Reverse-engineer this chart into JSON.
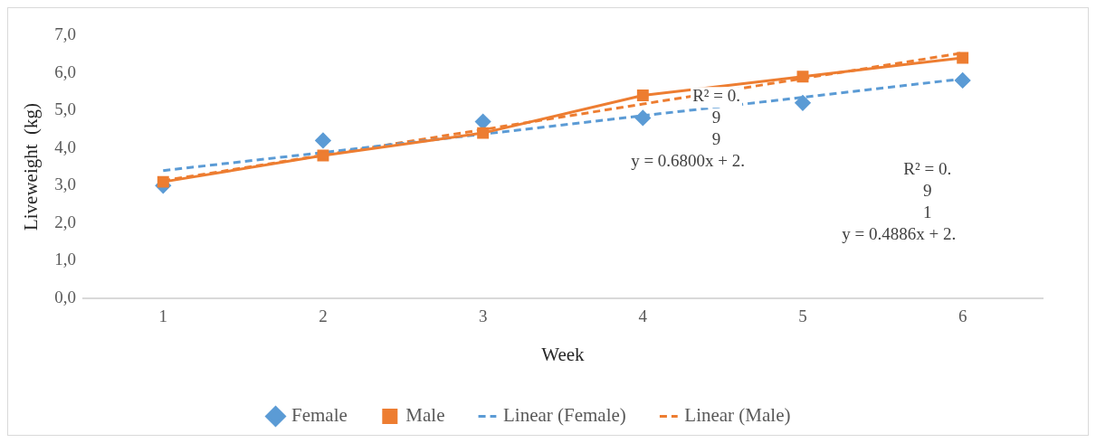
{
  "chart_data": {
    "type": "line",
    "xlabel": "Week",
    "ylabel": "Liveweight  (kg)",
    "xlim": [
      0.5,
      6.5
    ],
    "xticks": [
      1,
      2,
      3,
      4,
      5,
      6
    ],
    "ylim": [
      0,
      7
    ],
    "yticks": [
      {
        "value": 0,
        "label": "0,0"
      },
      {
        "value": 1,
        "label": "1,0"
      },
      {
        "value": 2,
        "label": "2,0"
      },
      {
        "value": 3,
        "label": "3,0"
      },
      {
        "value": 4,
        "label": "4,0"
      },
      {
        "value": 5,
        "label": "5,0"
      },
      {
        "value": 6,
        "label": "6,0"
      },
      {
        "value": 7,
        "label": "7,0"
      }
    ],
    "grid": false,
    "legend": "bottom",
    "series": [
      {
        "name": "Female",
        "type": "scatter",
        "marker": "diamond",
        "color": "#5b9bd5",
        "x": [
          1,
          2,
          3,
          4,
          5,
          6
        ],
        "values": [
          3.0,
          4.2,
          4.7,
          4.8,
          5.2,
          5.8
        ]
      },
      {
        "name": "Male",
        "type": "line",
        "marker": "square",
        "line_style": "solid",
        "color": "#ed7d31",
        "x": [
          1,
          2,
          3,
          4,
          5,
          6
        ],
        "values": [
          3.1,
          3.8,
          4.4,
          5.4,
          5.9,
          6.4
        ]
      },
      {
        "name": "Linear (Female)",
        "type": "line",
        "marker": "none",
        "line_style": "dashed",
        "color": "#5b9bd5",
        "x": [
          1,
          2,
          3,
          4,
          5,
          6
        ],
        "values": [
          3.4,
          3.88,
          4.37,
          4.86,
          5.35,
          5.84
        ]
      },
      {
        "name": "Linear (Male)",
        "type": "line",
        "marker": "none",
        "line_style": "dashed",
        "color": "#ed7d31",
        "x": [
          1,
          2,
          3,
          4,
          5,
          6
        ],
        "values": [
          3.13,
          3.81,
          4.49,
          5.17,
          5.85,
          6.53
        ]
      }
    ],
    "annotations": [
      "R² = 0.\n9\n9\ny = 0.6800x + 2.",
      "R² = 0.\n9\n1\ny = 0.4886x + 2."
    ]
  }
}
